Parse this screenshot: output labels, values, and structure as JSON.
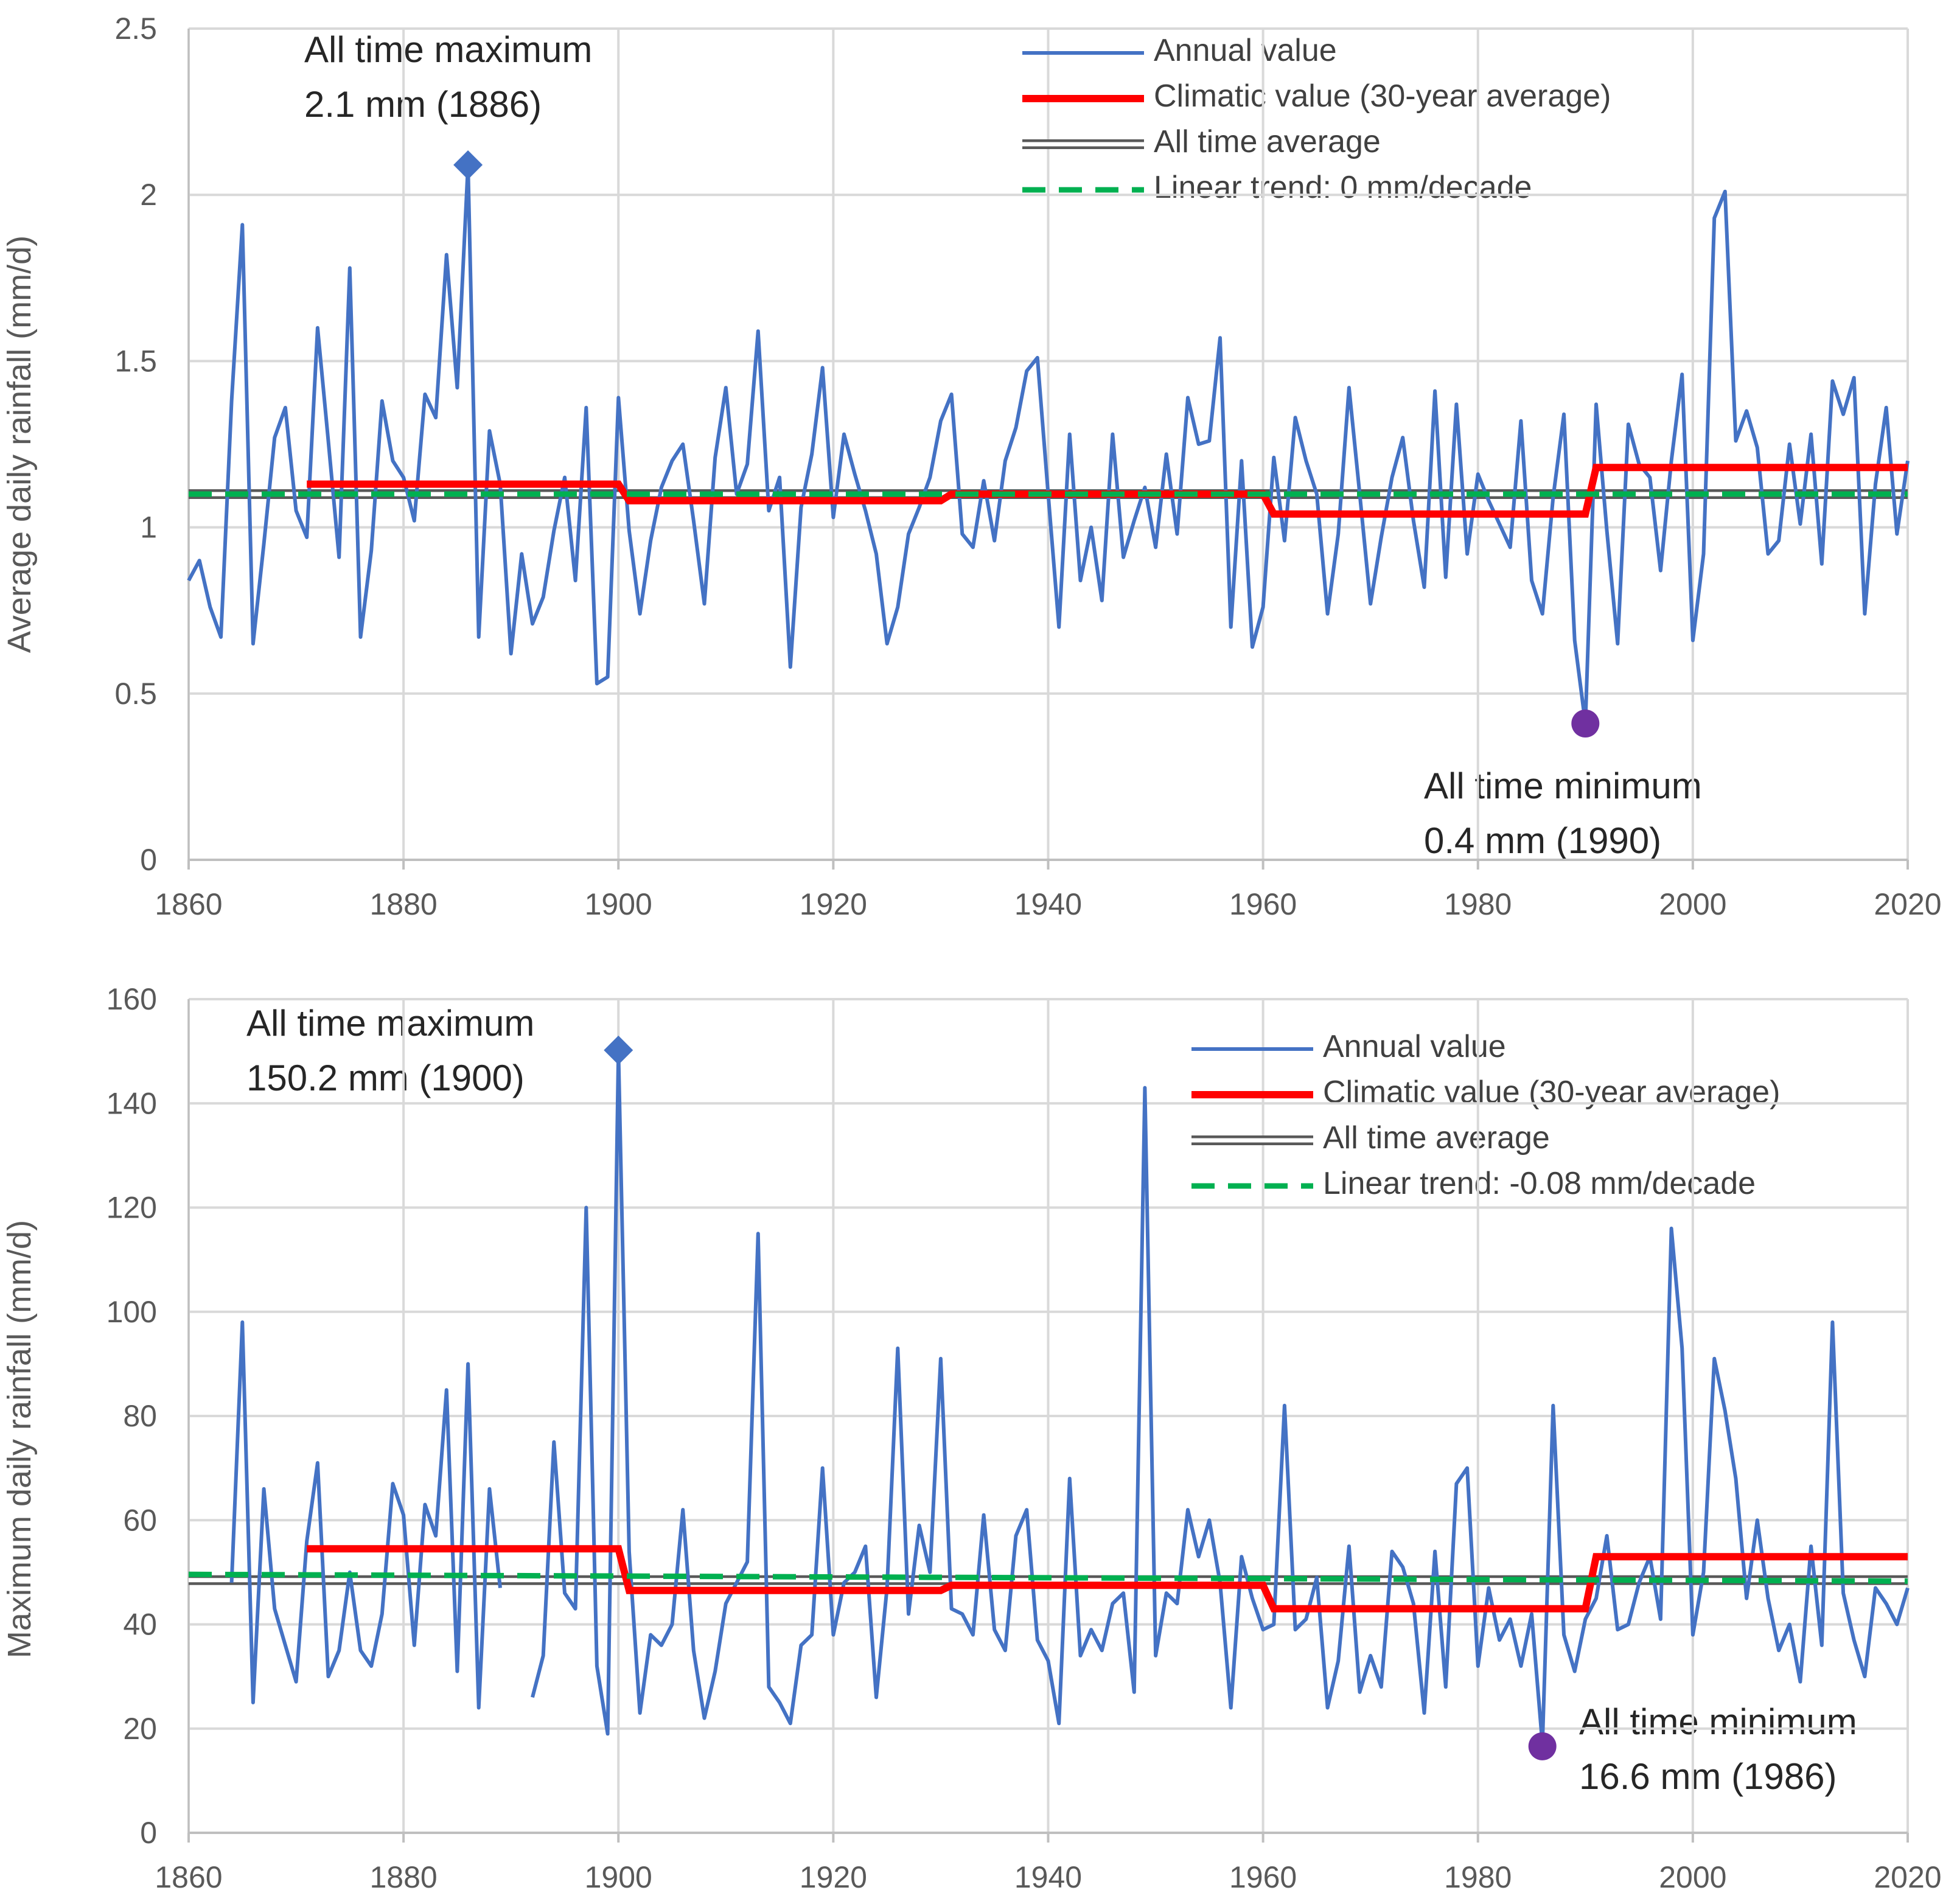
{
  "chart_data": [
    {
      "type": "line",
      "ylabel": "Average daily rainfall (mm/d)",
      "xlabel": "",
      "xlim": [
        1860,
        2020
      ],
      "ylim": [
        0,
        2.5
      ],
      "x_ticks": [
        1860,
        1880,
        1900,
        1920,
        1940,
        1960,
        1980,
        2000,
        2020
      ],
      "y_ticks": [
        0,
        0.5,
        1,
        1.5,
        2,
        2.5
      ],
      "y_tick_labels": [
        "0",
        "0.5",
        "1",
        "1.5",
        "2",
        "2.5"
      ],
      "grid": true,
      "legend_position": "top-right",
      "legend": [
        "Annual value",
        "Climatic value (30-year average)",
        "All time average",
        "Linear trend: 0 mm/decade"
      ],
      "colors": {
        "annual": "#4472C4",
        "climatic": "#FF0000",
        "average": "#595959",
        "trend": "#00B050",
        "max_marker": "#4472C4",
        "min_marker": "#7030A0"
      },
      "series": [
        {
          "name": "Annual value",
          "x_start": 1860,
          "values": [
            0.84,
            0.9,
            0.76,
            0.67,
            1.38,
            1.91,
            0.65,
            0.95,
            1.27,
            1.36,
            1.05,
            0.97,
            1.6,
            1.26,
            0.91,
            1.78,
            0.67,
            0.93,
            1.38,
            1.2,
            1.15,
            1.02,
            1.4,
            1.33,
            1.82,
            1.42,
            2.09,
            0.67,
            1.29,
            1.13,
            0.62,
            0.92,
            0.71,
            0.79,
            0.99,
            1.15,
            0.84,
            1.36,
            0.53,
            0.55,
            1.39,
            0.99,
            0.74,
            0.96,
            1.12,
            1.2,
            1.25,
            1.02,
            0.77,
            1.21,
            1.42,
            1.1,
            1.19,
            1.59,
            1.05,
            1.15,
            0.58,
            1.06,
            1.22,
            1.48,
            1.03,
            1.28,
            1.16,
            1.05,
            0.92,
            0.65,
            0.76,
            0.98,
            1.06,
            1.15,
            1.32,
            1.4,
            0.98,
            0.94,
            1.14,
            0.96,
            1.2,
            1.3,
            1.47,
            1.51,
            1.1,
            0.7,
            1.28,
            0.84,
            1.0,
            0.78,
            1.28,
            0.91,
            1.02,
            1.12,
            0.94,
            1.22,
            0.98,
            1.39,
            1.25,
            1.26,
            1.57,
            0.7,
            1.2,
            0.64,
            0.76,
            1.21,
            0.96,
            1.33,
            1.2,
            1.1,
            0.74,
            0.98,
            1.42,
            1.1,
            0.77,
            0.97,
            1.15,
            1.27,
            1.02,
            0.82,
            1.41,
            0.85,
            1.37,
            0.92,
            1.16,
            1.08,
            1.01,
            0.94,
            1.32,
            0.84,
            0.74,
            1.09,
            1.34,
            0.66,
            0.41,
            1.37,
            0.99,
            0.65,
            1.31,
            1.19,
            1.15,
            0.87,
            1.2,
            1.46,
            0.66,
            0.92,
            1.93,
            2.01,
            1.26,
            1.35,
            1.24,
            0.92,
            0.96,
            1.25,
            1.01,
            1.28,
            0.89,
            1.44,
            1.34,
            1.45,
            0.74,
            1.13,
            1.36,
            0.98,
            1.2
          ]
        },
        {
          "name": "Climatic value (30-year average)",
          "segments": [
            {
              "x_from": 1871,
              "x_to": 1900,
              "value": 1.13
            },
            {
              "x_from": 1901,
              "x_to": 1930,
              "value": 1.08
            },
            {
              "x_from": 1931,
              "x_to": 1960,
              "value": 1.1
            },
            {
              "x_from": 1961,
              "x_to": 1990,
              "value": 1.04
            },
            {
              "x_from": 1991,
              "x_to": 2020,
              "value": 1.18
            }
          ]
        },
        {
          "name": "All time average",
          "value": 1.1
        },
        {
          "name": "Linear trend: 0 mm/decade",
          "x": [
            1860,
            2020
          ],
          "values": [
            1.1,
            1.1
          ]
        }
      ],
      "annotations": {
        "max_title": "All time maximum",
        "max_value": "2.1 mm (1886)",
        "max_point": {
          "x": 1886,
          "y": 2.09
        },
        "min_title": "All time minimum",
        "min_value": "0.4 mm (1990)",
        "min_point": {
          "x": 1990,
          "y": 0.41
        }
      }
    },
    {
      "type": "line",
      "ylabel": "Maximum daily rainfall (mm/d)",
      "xlabel": "",
      "xlim": [
        1860,
        2020
      ],
      "ylim": [
        0,
        160
      ],
      "x_ticks": [
        1860,
        1880,
        1900,
        1920,
        1940,
        1960,
        1980,
        2000,
        2020
      ],
      "y_ticks": [
        0,
        20,
        40,
        60,
        80,
        100,
        120,
        140,
        160
      ],
      "y_tick_labels": [
        "0",
        "20",
        "40",
        "60",
        "80",
        "100",
        "120",
        "140",
        "160"
      ],
      "grid": true,
      "legend_position": "top-right",
      "legend": [
        "Annual value",
        "Climatic value (30-year average)",
        "All time average",
        "Linear trend: -0.08 mm/decade"
      ],
      "colors": {
        "annual": "#4472C4",
        "climatic": "#FF0000",
        "average": "#595959",
        "trend": "#00B050",
        "max_marker": "#4472C4",
        "min_marker": "#7030A0"
      },
      "series": [
        {
          "name": "Annual value",
          "x_start": 1860,
          "values": [
            null,
            null,
            null,
            null,
            48,
            98,
            25,
            66,
            43,
            36,
            29,
            56,
            71,
            30,
            35,
            50,
            35,
            32,
            42,
            67,
            61,
            36,
            63,
            57,
            85,
            31,
            90,
            24,
            66,
            47,
            null,
            null,
            26,
            34,
            75,
            46,
            43,
            120,
            32,
            19,
            150,
            54,
            23,
            38,
            36,
            40,
            62,
            35,
            22,
            31,
            44,
            48,
            52,
            115,
            28,
            25,
            21,
            36,
            38,
            70,
            38,
            48,
            50,
            55,
            26,
            47,
            93,
            42,
            59,
            50,
            91,
            43,
            42,
            38,
            61,
            39,
            35,
            57,
            62,
            37,
            33,
            21,
            68,
            34,
            39,
            35,
            44,
            46,
            27,
            143,
            34,
            46,
            44,
            62,
            53,
            60,
            48,
            24,
            53,
            45,
            39,
            40,
            82,
            39,
            41,
            49,
            24,
            33,
            55,
            27,
            34,
            28,
            54,
            51,
            44,
            23,
            54,
            28,
            67,
            70,
            32,
            47,
            37,
            41,
            32,
            42,
            17,
            82,
            38,
            31,
            41,
            45,
            57,
            39,
            40,
            48,
            53,
            41,
            116,
            93,
            38,
            50,
            91,
            81,
            68,
            45,
            60,
            45,
            35,
            40,
            29,
            55,
            36,
            98,
            46,
            37,
            30,
            47,
            44,
            40,
            47
          ]
        },
        {
          "name": "Climatic value (30-year average)",
          "segments": [
            {
              "x_from": 1871,
              "x_to": 1900,
              "value": 54.5
            },
            {
              "x_from": 1901,
              "x_to": 1930,
              "value": 46.5
            },
            {
              "x_from": 1931,
              "x_to": 1960,
              "value": 47.5
            },
            {
              "x_from": 1961,
              "x_to": 1990,
              "value": 43.0
            },
            {
              "x_from": 1991,
              "x_to": 2020,
              "value": 53.0
            }
          ]
        },
        {
          "name": "All time average",
          "value": 48.5
        },
        {
          "name": "Linear trend: -0.08 mm/decade",
          "x": [
            1860,
            2020
          ],
          "values": [
            49.6,
            48.3
          ]
        }
      ],
      "annotations": {
        "max_title": "All time maximum",
        "max_value": "150.2 mm (1900)",
        "max_point": {
          "x": 1900,
          "y": 150.2
        },
        "min_title": "All time minimum",
        "min_value": "16.6 mm (1986)",
        "min_point": {
          "x": 1986,
          "y": 16.6
        }
      }
    }
  ]
}
